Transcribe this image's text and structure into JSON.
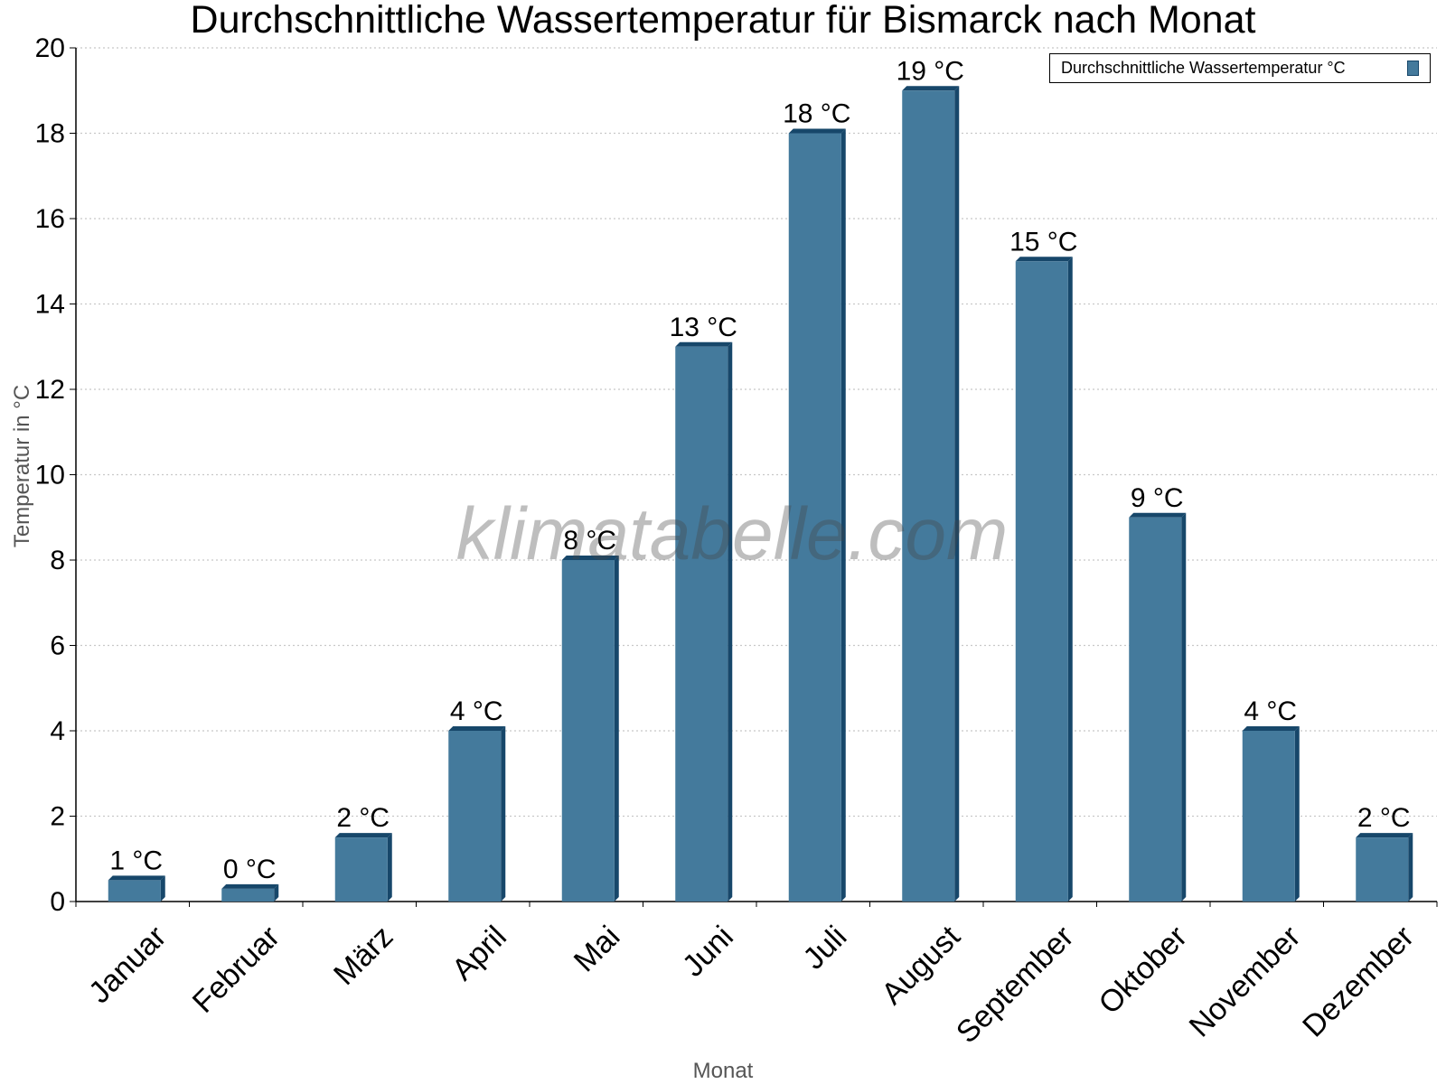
{
  "chart_data": {
    "type": "bar",
    "title": "Durchschnittliche Wassertemperatur für Bismarck nach Monat",
    "xlabel": "Monat",
    "ylabel": "Temperatur in °C",
    "ylim": [
      0,
      20
    ],
    "yticks": [
      0,
      2,
      4,
      6,
      8,
      10,
      12,
      14,
      16,
      18,
      20
    ],
    "grid": true,
    "legend_position": "top-right",
    "categories": [
      "Januar",
      "Februar",
      "März",
      "April",
      "Mai",
      "Juni",
      "Juli",
      "August",
      "September",
      "Oktober",
      "November",
      "Dezember"
    ],
    "series": [
      {
        "name": "Durchschnittliche Wassertemperatur °C",
        "values": [
          0.5,
          0.3,
          1.5,
          4,
          8,
          13,
          18,
          19,
          15,
          9,
          4,
          1.5
        ],
        "data_labels": [
          "1 °C",
          "0 °C",
          "2 °C",
          "4 °C",
          "8 °C",
          "13 °C",
          "18 °C",
          "19 °C",
          "15 °C",
          "9 °C",
          "4 °C",
          "2 °C"
        ]
      }
    ],
    "colors": {
      "bar": "#447a9c",
      "bar_edge": "#17476a",
      "grid": "#c8c8c8"
    },
    "watermark": "klimatabelle.com"
  }
}
